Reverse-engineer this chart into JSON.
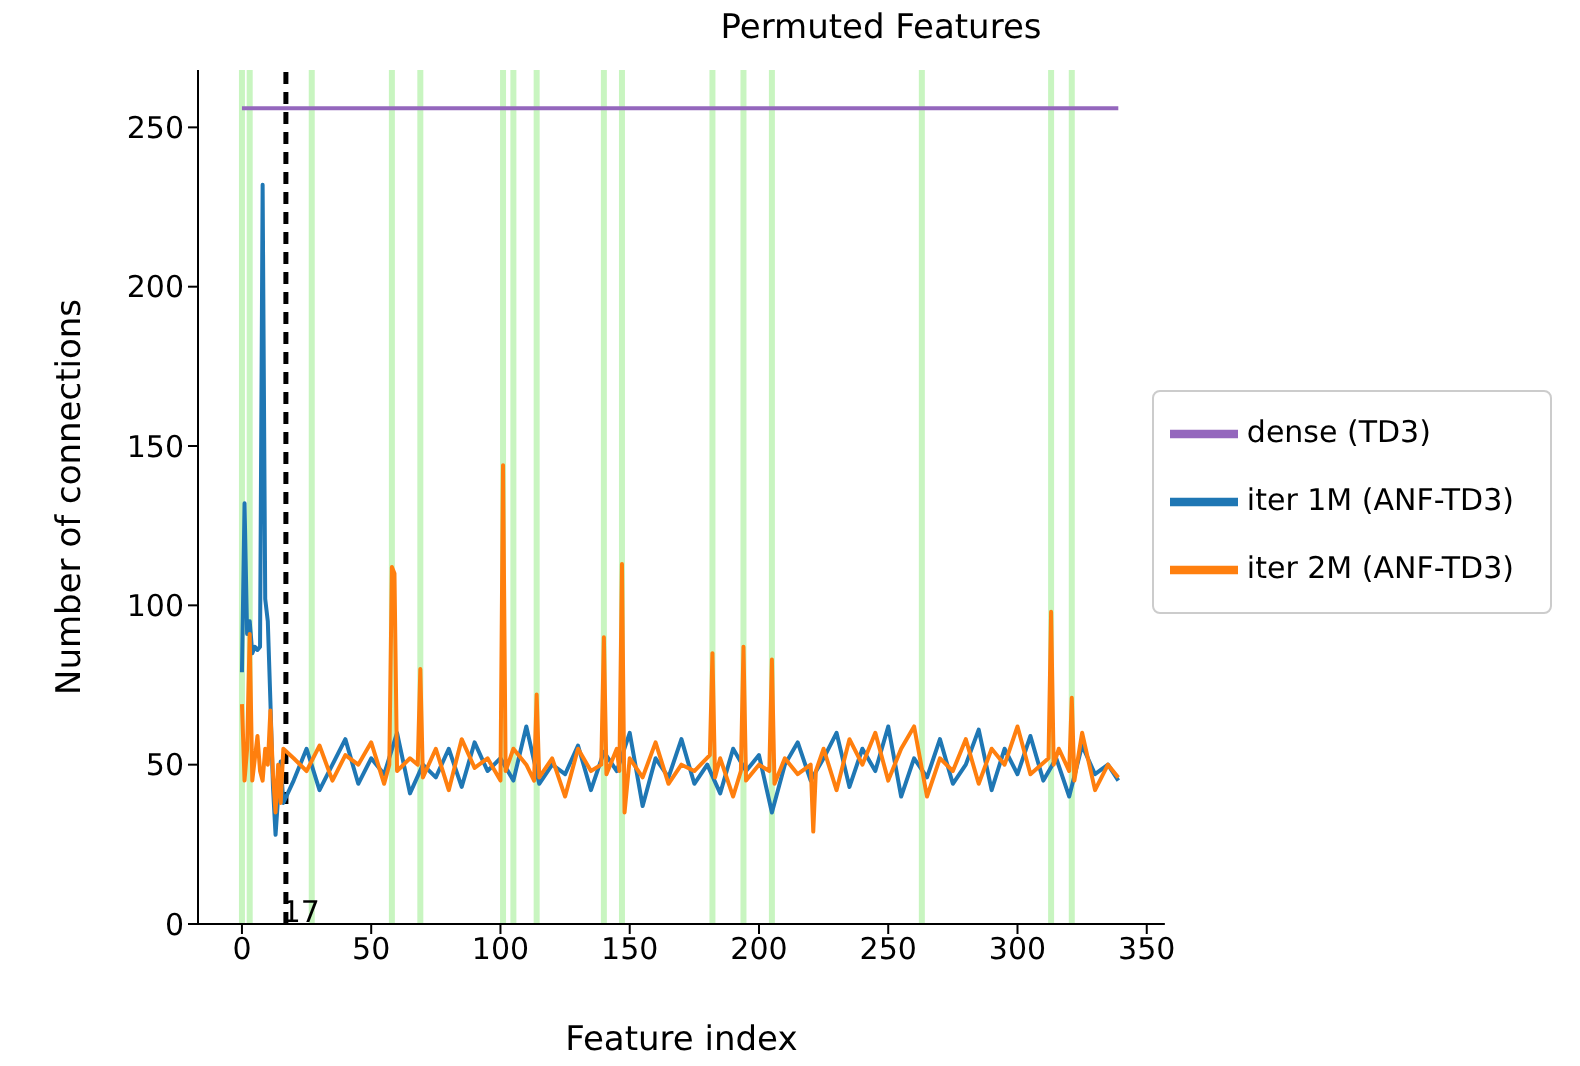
{
  "chart_data": {
    "type": "line",
    "title": "Permuted Features",
    "xlabel": "Feature index",
    "ylabel": "Number of connections",
    "xlim": [
      -17,
      357
    ],
    "xticks": [
      0,
      50,
      100,
      150,
      200,
      250,
      300,
      350
    ],
    "ylim": [
      0,
      268
    ],
    "yticks": [
      0,
      50,
      100,
      150,
      200,
      250
    ],
    "legend": "right",
    "series": [
      {
        "name": "iter 1M (ANF-TD3)",
        "color": "#1f77b4",
        "x": [
          0,
          1,
          2,
          3,
          4,
          5,
          6,
          7,
          8,
          9,
          10,
          11,
          12,
          13,
          14,
          15,
          16,
          20,
          25,
          30,
          35,
          40,
          45,
          50,
          55,
          60,
          65,
          70,
          75,
          80,
          85,
          90,
          95,
          100,
          105,
          110,
          115,
          120,
          125,
          130,
          135,
          140,
          145,
          150,
          155,
          160,
          165,
          170,
          175,
          180,
          185,
          190,
          195,
          200,
          205,
          210,
          215,
          220,
          225,
          230,
          235,
          240,
          245,
          250,
          255,
          260,
          265,
          270,
          275,
          280,
          285,
          290,
          295,
          300,
          305,
          310,
          315,
          320,
          325,
          330,
          335,
          339
        ],
        "values": [
          79,
          132,
          91,
          95,
          85,
          87,
          86,
          87,
          232,
          102,
          95,
          70,
          43,
          28,
          40,
          51,
          38,
          45,
          55,
          42,
          50,
          58,
          44,
          52,
          47,
          60,
          41,
          50,
          46,
          55,
          43,
          57,
          48,
          52,
          45,
          62,
          44,
          50,
          47,
          56,
          42,
          54,
          48,
          60,
          37,
          52,
          46,
          58,
          44,
          50,
          41,
          55,
          48,
          53,
          35,
          50,
          57,
          45,
          52,
          60,
          43,
          55,
          48,
          62,
          40,
          52,
          46,
          58,
          44,
          50,
          61,
          42,
          55,
          47,
          59,
          45,
          52,
          40,
          56,
          47,
          50,
          45
        ]
      },
      {
        "name": "iter 2M (ANF-TD3)",
        "color": "#ff7f0e",
        "x": [
          0,
          1,
          2,
          3,
          4,
          5,
          6,
          7,
          8,
          9,
          10,
          11,
          12,
          13,
          14,
          15,
          16,
          20,
          25,
          30,
          35,
          40,
          45,
          50,
          55,
          57,
          58,
          59,
          60,
          65,
          68,
          69,
          70,
          75,
          80,
          85,
          90,
          95,
          100,
          101,
          102,
          105,
          110,
          113,
          114,
          115,
          120,
          125,
          130,
          135,
          139,
          140,
          141,
          145,
          146,
          147,
          148,
          150,
          155,
          160,
          165,
          170,
          175,
          181,
          182,
          183,
          185,
          190,
          193,
          194,
          195,
          200,
          204,
          205,
          206,
          210,
          215,
          220,
          221,
          222,
          225,
          230,
          235,
          240,
          245,
          250,
          255,
          260,
          265,
          270,
          275,
          280,
          285,
          290,
          295,
          300,
          305,
          312,
          313,
          314,
          316,
          320,
          321,
          322,
          325,
          330,
          335,
          339
        ],
        "values": [
          69,
          45,
          55,
          91,
          45,
          52,
          59,
          48,
          45,
          55,
          50,
          67,
          47,
          35,
          50,
          38,
          55,
          52,
          48,
          56,
          45,
          53,
          50,
          57,
          44,
          50,
          112,
          110,
          48,
          52,
          50,
          80,
          46,
          55,
          42,
          58,
          49,
          52,
          45,
          144,
          48,
          55,
          50,
          45,
          72,
          46,
          52,
          40,
          55,
          48,
          50,
          90,
          47,
          55,
          48,
          113,
          35,
          52,
          46,
          57,
          44,
          50,
          48,
          53,
          85,
          46,
          52,
          40,
          48,
          87,
          45,
          50,
          48,
          83,
          44,
          52,
          47,
          50,
          29,
          48,
          55,
          42,
          58,
          50,
          60,
          45,
          55,
          62,
          40,
          52,
          48,
          58,
          44,
          55,
          50,
          62,
          47,
          52,
          98,
          50,
          55,
          48,
          71,
          45,
          60,
          42,
          50,
          46
        ]
      },
      {
        "name": "dense (TD3)",
        "color": "#9467bd",
        "x": [
          0,
          339
        ],
        "values": [
          256,
          256
        ]
      }
    ],
    "ref_lines": [
      {
        "axis": "x",
        "value": 0,
        "color": "#c8f5c0"
      },
      {
        "axis": "x",
        "value": 3,
        "color": "#c8f5c0"
      },
      {
        "axis": "x",
        "value": 27,
        "color": "#c8f5c0"
      },
      {
        "axis": "x",
        "value": 58,
        "color": "#c8f5c0"
      },
      {
        "axis": "x",
        "value": 69,
        "color": "#c8f5c0"
      },
      {
        "axis": "x",
        "value": 101,
        "color": "#c8f5c0"
      },
      {
        "axis": "x",
        "value": 105,
        "color": "#c8f5c0"
      },
      {
        "axis": "x",
        "value": 114,
        "color": "#c8f5c0"
      },
      {
        "axis": "x",
        "value": 140,
        "color": "#c8f5c0"
      },
      {
        "axis": "x",
        "value": 147,
        "color": "#c8f5c0"
      },
      {
        "axis": "x",
        "value": 182,
        "color": "#c8f5c0"
      },
      {
        "axis": "x",
        "value": 194,
        "color": "#c8f5c0"
      },
      {
        "axis": "x",
        "value": 205,
        "color": "#c8f5c0"
      },
      {
        "axis": "x",
        "value": 263,
        "color": "#c8f5c0"
      },
      {
        "axis": "x",
        "value": 313,
        "color": "#c8f5c0"
      },
      {
        "axis": "x",
        "value": 321,
        "color": "#c8f5c0"
      },
      {
        "axis": "x",
        "value": 17,
        "label": "17",
        "color": "#000000",
        "line_style": "dashed"
      }
    ]
  }
}
